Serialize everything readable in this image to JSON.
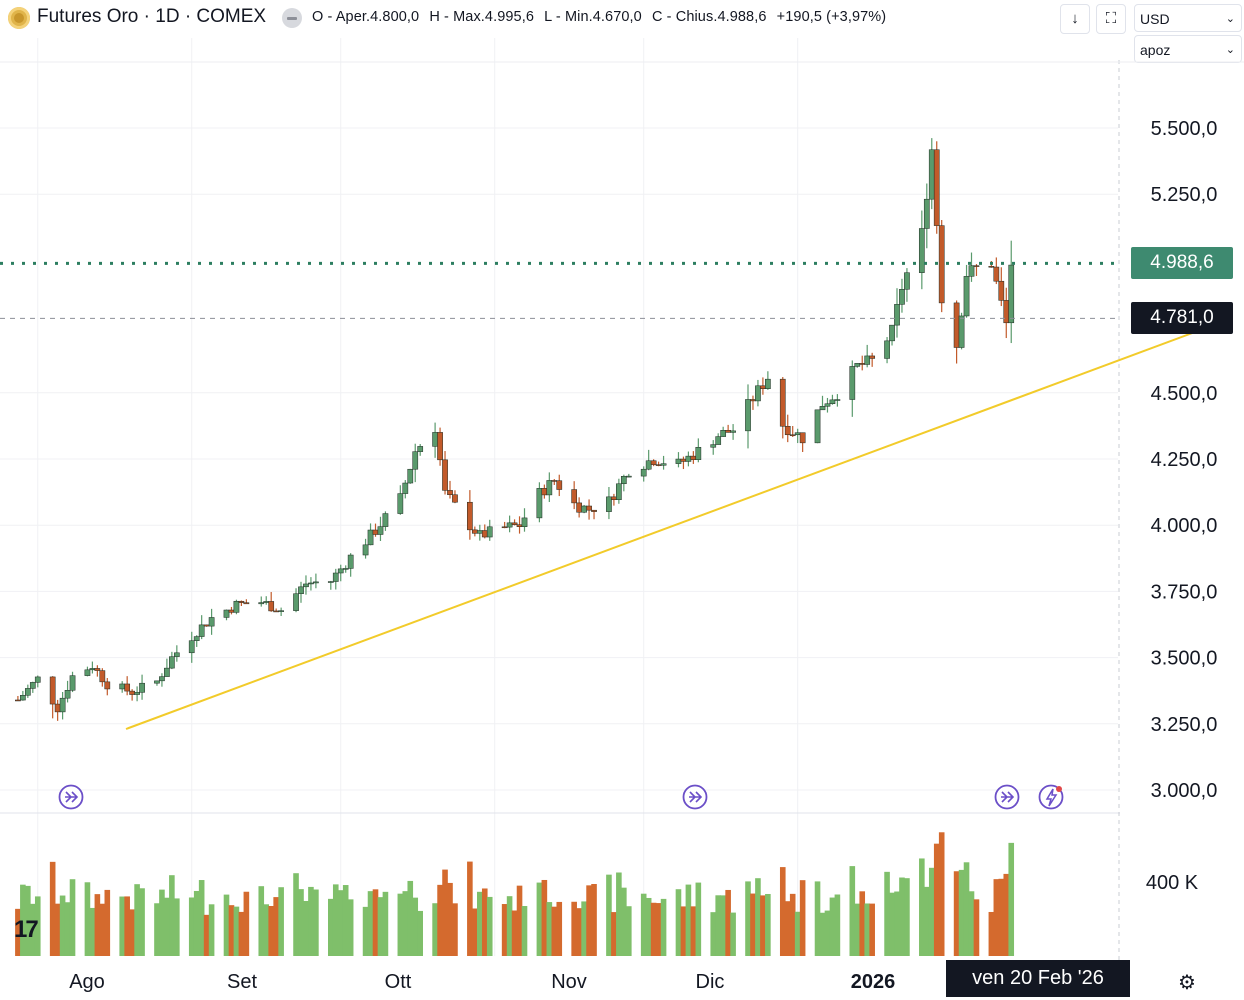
{
  "header": {
    "symbol_title": "Futures Oro · 1D · COMEX",
    "open": "O - Aper.4.800,0",
    "high": "H - Max.4.995,6",
    "low": "L - Min.4.670,0",
    "close": "C - Chius.4.988,6",
    "change": "+190,5 (+3,97%)",
    "currency": "USD",
    "adjustment": "apoz"
  },
  "labels": {
    "last_price": "4.988,6",
    "crosshair_price": "4.781,0",
    "crosshair_date": "ven 20 Feb '26",
    "volume_scale": "400 K",
    "logo": "17"
  },
  "colors": {
    "up": "#5a9a6c",
    "down": "#c25a2a",
    "up_volume": "#7fbf6a",
    "down_volume": "#d46a2e",
    "trendline": "#f2cb2a",
    "last_price_line": "#2d7e60",
    "event_icon": "#6b4fc8"
  },
  "icons": [
    "symbol-icon",
    "status-icon",
    "download-icon",
    "fullscreen-icon",
    "event-icon",
    "dividend-icon",
    "settings-icon"
  ],
  "chart_data": {
    "type": "candlestick",
    "y_axis": {
      "ticks": [
        "3.000,0",
        "3.250,0",
        "3.500,0",
        "3.750,0",
        "4.000,0",
        "4.250,0",
        "4.500,0",
        "5.250,0",
        "5.500,0"
      ],
      "range": [
        2980,
        5650
      ]
    },
    "x_axis": {
      "ticks": [
        "Ago",
        "Set",
        "Ott",
        "Nov",
        "Dic",
        "2026"
      ]
    },
    "last_price": 4988.6,
    "crosshair_price": 4781.0,
    "anchors": [
      [
        "2025-07-28",
        3340
      ],
      [
        "2025-08-01",
        3420
      ],
      [
        "2025-08-05",
        3310
      ],
      [
        "2025-08-08",
        3430
      ],
      [
        "2025-08-12",
        3470
      ],
      [
        "2025-08-15",
        3400
      ],
      [
        "2025-08-20",
        3370
      ],
      [
        "2025-08-25",
        3410
      ],
      [
        "2025-08-28",
        3500
      ],
      [
        "2025-09-02",
        3600
      ],
      [
        "2025-09-05",
        3650
      ],
      [
        "2025-09-10",
        3700
      ],
      [
        "2025-09-15",
        3710
      ],
      [
        "2025-09-19",
        3680
      ],
      [
        "2025-09-24",
        3780
      ],
      [
        "2025-09-29",
        3790
      ],
      [
        "2025-10-03",
        3880
      ],
      [
        "2025-10-08",
        3980
      ],
      [
        "2025-10-13",
        4100
      ],
      [
        "2025-10-16",
        4280
      ],
      [
        "2025-10-20",
        4370
      ],
      [
        "2025-10-22",
        4120
      ],
      [
        "2025-10-27",
        4000
      ],
      [
        "2025-10-29",
        3960
      ],
      [
        "2025-11-03",
        3990
      ],
      [
        "2025-11-06",
        4000
      ],
      [
        "2025-11-10",
        4120
      ],
      [
        "2025-11-13",
        4170
      ],
      [
        "2025-11-17",
        4080
      ],
      [
        "2025-11-20",
        4060
      ],
      [
        "2025-11-24",
        4090
      ],
      [
        "2025-11-28",
        4210
      ],
      [
        "2025-12-03",
        4250
      ],
      [
        "2025-12-08",
        4230
      ],
      [
        "2025-12-12",
        4280
      ],
      [
        "2025-12-16",
        4340
      ],
      [
        "2025-12-19",
        4360
      ],
      [
        "2025-12-23",
        4480
      ],
      [
        "2025-12-26",
        4560
      ],
      [
        "2025-12-29",
        4380
      ],
      [
        "2026-01-02",
        4330
      ],
      [
        "2026-01-06",
        4460
      ],
      [
        "2026-01-09",
        4500
      ],
      [
        "2026-01-13",
        4600
      ],
      [
        "2026-01-16",
        4620
      ],
      [
        "2026-01-20",
        4730
      ],
      [
        "2026-01-22",
        4900
      ],
      [
        "2026-01-26",
        5100
      ],
      [
        "2026-01-28",
        5420
      ],
      [
        "2026-01-30",
        4860
      ],
      [
        "2026-02-02",
        4680
      ],
      [
        "2026-02-04",
        4950
      ],
      [
        "2026-02-06",
        4970
      ],
      [
        "2026-02-09",
        4990
      ],
      [
        "2026-02-12",
        4760
      ],
      [
        "2026-02-13",
        4988.6
      ]
    ],
    "volume_range": [
      0,
      480000
    ]
  }
}
